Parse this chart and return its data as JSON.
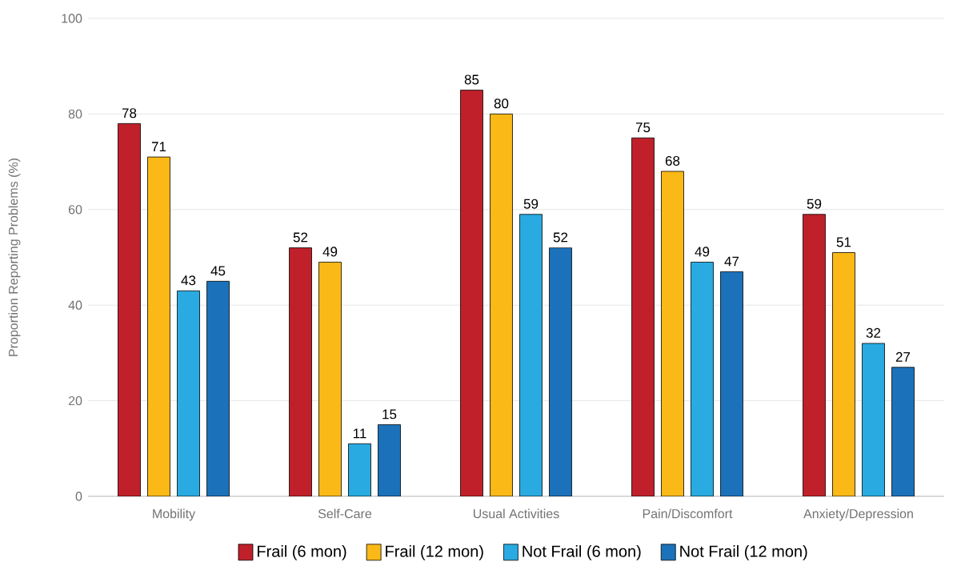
{
  "chart_data": {
    "type": "bar",
    "ylabel": "Proportion Reporting Problems (%)",
    "categories": [
      "Mobility",
      "Self-Care",
      "Usual Activities",
      "Pain/Discomfort",
      "Anxiety/Depression"
    ],
    "series": [
      {
        "name": "Frail (6 mon)",
        "color": "#c0202a",
        "values": [
          78,
          52,
          85,
          75,
          59
        ]
      },
      {
        "name": "Frail (12 mon)",
        "color": "#fbb917",
        "values": [
          71,
          49,
          80,
          68,
          51
        ]
      },
      {
        "name": "Not Frail (6 mon)",
        "color": "#29abe2",
        "values": [
          43,
          11,
          59,
          49,
          32
        ]
      },
      {
        "name": "Not Frail (12 mon)",
        "color": "#1b72ba",
        "values": [
          45,
          15,
          52,
          47,
          27
        ]
      }
    ],
    "ylim": [
      0,
      100
    ],
    "yticks": [
      0,
      20,
      40,
      60,
      80,
      100
    ],
    "grid": "y",
    "legend": "bottom",
    "data_labels": true
  }
}
